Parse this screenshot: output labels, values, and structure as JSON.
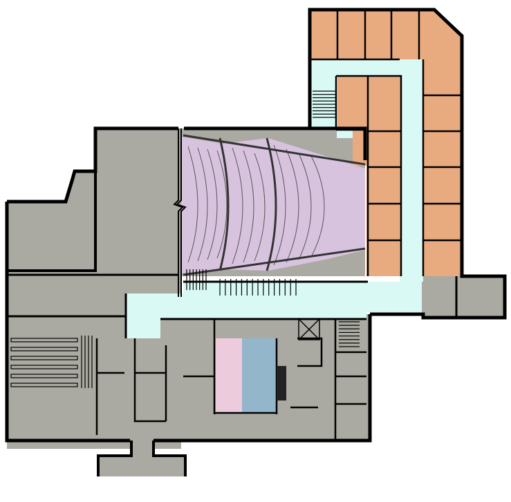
{
  "plan": {
    "colors": {
      "background": "#ffffff",
      "wall": "#000000",
      "building_gray": "#aaaaa2",
      "corridor": "#d9f9f5",
      "office_orange": "#e8ab80",
      "theater_lavender": "#d8c3df",
      "room_pink": "#eccbdd",
      "room_blue": "#93b6cb"
    },
    "labels": []
  }
}
